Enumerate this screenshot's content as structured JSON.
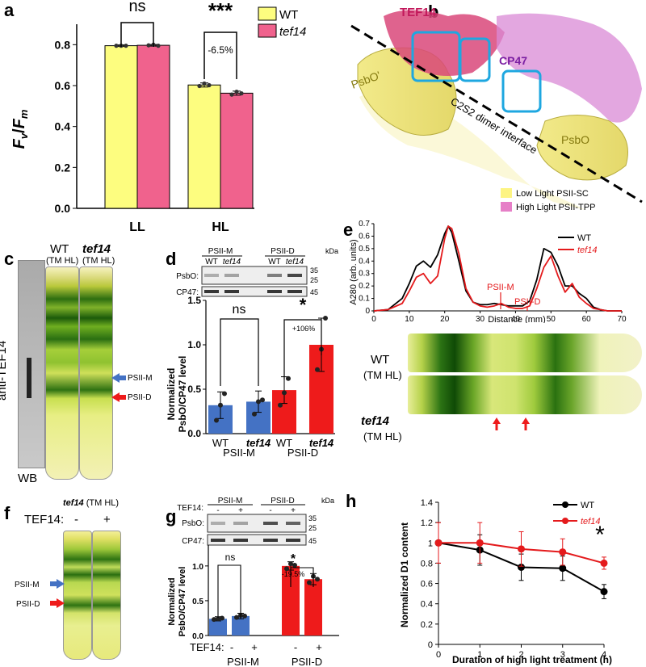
{
  "panels": {
    "a": "a",
    "b": "b",
    "c": "c",
    "d": "d",
    "e": "e",
    "f": "f",
    "g": "g",
    "h": "h"
  },
  "colors": {
    "wt": "#fdfd7f",
    "tef14": "#f0628d",
    "psiim": "#4472c4",
    "psiid": "#ee1b1b",
    "lineWT": "#000000",
    "lineTef": "#e41a1c"
  },
  "panel_a": {
    "ylabel_main": "F",
    "ylabel_sub1": "v",
    "ylabel_slash": "/",
    "ylabel_f2": "F",
    "ylabel_sub2": "m",
    "sig_ll": "ns",
    "sig_hl": "***",
    "pct_hl": "-6.5%",
    "legend": [
      "WT",
      "tef14"
    ]
  },
  "panel_b": {
    "label_tef14": "TEF14",
    "label_cp47": "CP47",
    "label_psbo_left": "PsbO'",
    "label_psbo_right": "PsbO",
    "interface": "C2S2 dimer interface",
    "legend": [
      "Low Light PSII-SC",
      "High Light PSII-TPP"
    ]
  },
  "panel_c": {
    "side_label": "anti-TEF14",
    "wb": "WB",
    "wt": "WT",
    "wt_cond": "(TM HL)",
    "tef": "tef14",
    "tef_cond": "(TM HL)",
    "arrow_m": "PSII-M",
    "arrow_d": "PSII-D"
  },
  "panel_d": {
    "blot_groups": [
      "PSII-M",
      "PSII-D"
    ],
    "blot_lanes": [
      "WT",
      "tef14",
      "WT",
      "tef14"
    ],
    "blot_rows": [
      "PsbO:",
      "CP47:"
    ],
    "kda": "kDa",
    "kda_marks": [
      "35",
      "25",
      "45"
    ],
    "ylabel1": "Normalized",
    "ylabel2": "PsbO/CP47 level",
    "sig_m": "ns",
    "sig_d": "*",
    "pct_d": "+106%",
    "groups": [
      "PSII-M",
      "PSII-D"
    ]
  },
  "panel_e": {
    "ylabel": "A280 (arb. units)",
    "xlabel": "Distance (mm)",
    "legend": [
      "WT",
      "tef14"
    ],
    "ann_m": "PSII-M",
    "ann_d": "PSII-D",
    "tube_wt": "WT",
    "tube_wt_cond": "(TM HL)",
    "tube_tef": "tef14",
    "tube_tef_cond": "(TM HL)"
  },
  "panel_f": {
    "title": "tef14",
    "title_cond": "(TM HL)",
    "row_label": "TEF14:",
    "minus": "-",
    "plus": "+",
    "arrow_m": "PSII-M",
    "arrow_d": "PSII-D"
  },
  "panel_g": {
    "tef_label": "TEF14:",
    "blot_groups": [
      "PSII-M",
      "PSII-D"
    ],
    "signs": [
      "-",
      "+",
      "-",
      "+"
    ],
    "blot_rows": [
      "PsbO:",
      "CP47:"
    ],
    "kda": "kDa",
    "kda_marks": [
      "35",
      "25",
      "45"
    ],
    "ylabel1": "Normalized",
    "ylabel2": "PsbO/CP47 level",
    "sig_m": "ns",
    "sig_d": "*",
    "pct_d": "-19.5%",
    "groups": [
      "PSII-M",
      "PSII-D"
    ]
  },
  "panel_h": {
    "ylabel": "Normalized D1 content",
    "xlabel": "Duration of high light treatment (h)",
    "legend": [
      "WT",
      "tef14"
    ],
    "sig": "*"
  },
  "chart_data": [
    {
      "id": "a",
      "type": "bar",
      "categories": [
        "LL",
        "HL"
      ],
      "series": [
        {
          "name": "WT",
          "values": [
            0.795,
            0.603
          ],
          "errors": [
            0.004,
            0.01
          ]
        },
        {
          "name": "tef14",
          "values": [
            0.797,
            0.563
          ],
          "errors": [
            0.004,
            0.01
          ]
        }
      ],
      "points": {
        "WT": [
          [
            0.795,
            0.795,
            0.795
          ],
          [
            0.598,
            0.61,
            0.602
          ]
        ],
        "tef14": [
          [
            0.797,
            0.8,
            0.795
          ],
          [
            0.556,
            0.57,
            0.562
          ]
        ]
      },
      "ylim": [
        0,
        0.9
      ],
      "yticks": [
        "0.0",
        "0.2",
        "0.4",
        "0.6",
        "0.8"
      ]
    },
    {
      "id": "d",
      "type": "bar",
      "categories": [
        "WT",
        "tef14",
        "WT",
        "tef14"
      ],
      "category_labels": [
        "WT",
        "tef14",
        "WT",
        "tef14"
      ],
      "values": [
        0.32,
        0.36,
        0.49,
        1.0
      ],
      "errors": [
        0.15,
        0.12,
        0.15,
        0.3
      ],
      "points": [
        [
          0.15,
          0.32,
          0.45
        ],
        [
          0.22,
          0.36,
          0.38
        ],
        [
          0.32,
          0.46,
          0.62
        ],
        [
          0.72,
          0.95,
          1.3
        ]
      ],
      "ylim": [
        0,
        1.5
      ],
      "yticks": [
        "0.0",
        "0.5",
        "1.0",
        "1.5"
      ]
    },
    {
      "id": "e",
      "type": "line",
      "x": [
        0,
        4,
        8,
        10,
        12,
        14,
        16,
        18,
        20,
        21,
        22,
        24,
        26,
        28,
        30,
        32,
        34,
        36,
        38,
        40,
        42,
        44,
        46,
        48,
        50,
        52,
        54,
        56,
        58,
        60,
        62,
        64,
        66,
        68,
        70
      ],
      "series": [
        {
          "name": "WT",
          "values": [
            0.0,
            0.01,
            0.1,
            0.22,
            0.36,
            0.4,
            0.35,
            0.45,
            0.62,
            0.68,
            0.63,
            0.4,
            0.16,
            0.07,
            0.05,
            0.05,
            0.06,
            0.05,
            0.04,
            0.04,
            0.04,
            0.08,
            0.25,
            0.5,
            0.47,
            0.36,
            0.2,
            0.2,
            0.14,
            0.1,
            0.03,
            0.01,
            0.0,
            0.0,
            0.0
          ]
        },
        {
          "name": "tef14",
          "values": [
            0.0,
            0.01,
            0.06,
            0.16,
            0.27,
            0.3,
            0.22,
            0.28,
            0.58,
            0.68,
            0.66,
            0.46,
            0.18,
            0.07,
            0.04,
            0.03,
            0.04,
            0.06,
            0.03,
            0.02,
            0.02,
            0.04,
            0.18,
            0.35,
            0.44,
            0.28,
            0.15,
            0.22,
            0.11,
            0.06,
            0.02,
            0.01,
            0.0,
            0.0,
            0.0
          ]
        }
      ],
      "xlim": [
        0,
        70
      ],
      "ylim": [
        0,
        0.7
      ],
      "xticks": [
        "0",
        "10",
        "20",
        "30",
        "40",
        "50",
        "60",
        "70"
      ],
      "yticks": [
        "0",
        "0.1",
        "0.2",
        "0.3",
        "0.4",
        "0.5",
        "0.6",
        "0.7"
      ]
    },
    {
      "id": "g",
      "type": "bar",
      "categories": [
        "-",
        "+",
        "-",
        "+"
      ],
      "values": [
        0.24,
        0.28,
        1.0,
        0.81
      ],
      "errors": [
        0.03,
        0.04,
        0.06,
        0.08
      ],
      "points": [
        [
          0.23,
          0.24,
          0.25
        ],
        [
          0.26,
          0.29,
          0.28
        ],
        [
          0.96,
          1.03,
          1.01
        ],
        [
          0.76,
          0.85,
          0.81
        ]
      ],
      "ylim": [
        0,
        1.3
      ],
      "yticks": [
        "0.0",
        "0.5",
        "1.0"
      ]
    },
    {
      "id": "h",
      "type": "line",
      "x": [
        0,
        1,
        2,
        3,
        4
      ],
      "series": [
        {
          "name": "WT",
          "values": [
            1.0,
            0.93,
            0.76,
            0.75,
            0.52
          ],
          "errors": [
            0.2,
            0.15,
            0.13,
            0.12,
            0.07
          ]
        },
        {
          "name": "tef14",
          "values": [
            1.0,
            1.0,
            0.94,
            0.91,
            0.8
          ],
          "errors": [
            0.2,
            0.2,
            0.17,
            0.13,
            0.06
          ]
        }
      ],
      "xlim": [
        0,
        4
      ],
      "ylim": [
        0,
        1.4
      ],
      "xticks": [
        "0",
        "1",
        "2",
        "3",
        "4"
      ],
      "yticks": [
        "0",
        "0.2",
        "0.4",
        "0.6",
        "0.8",
        "1",
        "1.2",
        "1.4"
      ]
    }
  ]
}
